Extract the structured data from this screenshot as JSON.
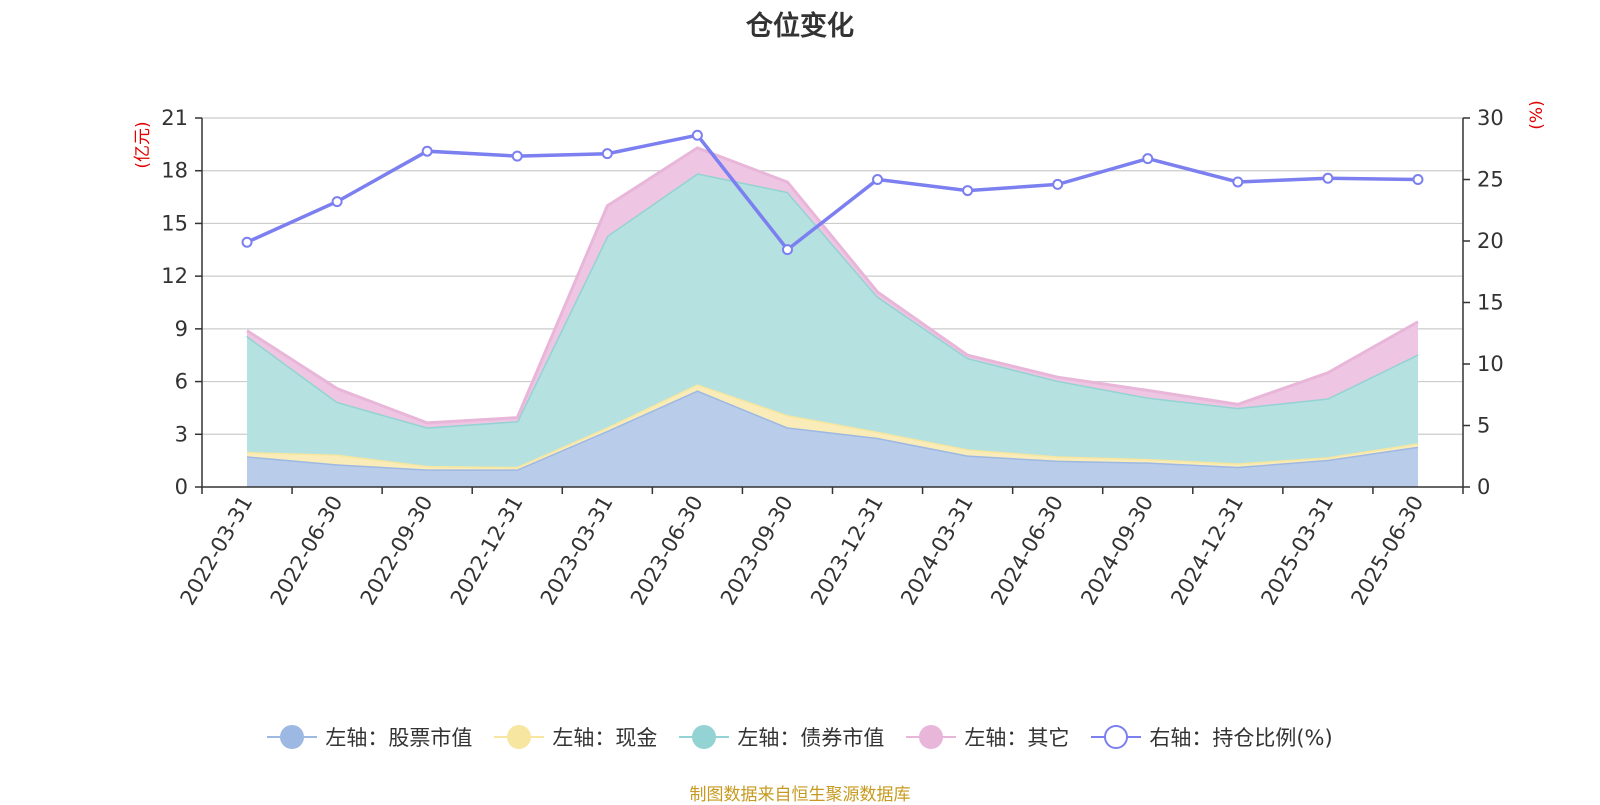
{
  "chart_data": {
    "type": "area",
    "title": "仓位变化",
    "categories": [
      "2022-03-31",
      "2022-06-30",
      "2022-09-30",
      "2022-12-31",
      "2023-03-31",
      "2023-06-30",
      "2023-09-30",
      "2023-12-31",
      "2024-03-31",
      "2024-06-30",
      "2024-09-30",
      "2024-12-31",
      "2025-03-31",
      "2025-06-30"
    ],
    "stacked": true,
    "y_left": {
      "unit": "(亿元)",
      "min": 0,
      "max": 21,
      "ticks": [
        0,
        3,
        6,
        9,
        12,
        15,
        18,
        21
      ]
    },
    "y_right": {
      "unit": "(%)",
      "min": 0,
      "max": 30,
      "ticks": [
        0,
        5,
        10,
        15,
        20,
        25,
        30
      ]
    },
    "series": [
      {
        "name": "左轴：股票市值",
        "axis": "left",
        "type": "area",
        "values": [
          1.75,
          1.3,
          1.0,
          1.0,
          3.2,
          5.5,
          3.4,
          2.8,
          1.8,
          1.5,
          1.4,
          1.15,
          1.55,
          2.3
        ],
        "color": "#9db8e2",
        "fill": "#b9cdea"
      },
      {
        "name": "左轴：现金",
        "axis": "left",
        "type": "area",
        "values": [
          0.25,
          0.55,
          0.2,
          0.15,
          0.2,
          0.35,
          0.7,
          0.35,
          0.35,
          0.25,
          0.2,
          0.2,
          0.15,
          0.2
        ],
        "color": "#f6e6a0",
        "fill": "#f9ecb8"
      },
      {
        "name": "左轴：债券市值",
        "axis": "left",
        "type": "area",
        "values": [
          6.6,
          3.0,
          2.2,
          2.6,
          10.9,
          12.0,
          12.7,
          7.7,
          5.2,
          4.3,
          3.5,
          3.15,
          3.35,
          5.05
        ],
        "color": "#93d3d3",
        "fill": "#b5e1e1"
      },
      {
        "name": "左轴：其它",
        "axis": "left",
        "type": "area",
        "values": [
          0.3,
          0.75,
          0.25,
          0.2,
          1.7,
          1.45,
          0.55,
          0.25,
          0.15,
          0.2,
          0.4,
          0.2,
          1.45,
          1.85
        ],
        "color": "#e8b6d9",
        "fill": "#eec6e3"
      },
      {
        "name": "右轴：持仓比例(%)",
        "axis": "right",
        "type": "line",
        "values": [
          19.9,
          23.2,
          27.3,
          26.9,
          27.1,
          28.6,
          19.3,
          25.0,
          24.1,
          24.6,
          26.7,
          24.8,
          25.1,
          25.0
        ],
        "color": "#7b7ff0"
      }
    ],
    "grid": true,
    "legend_position": "bottom"
  },
  "footer": "制图数据来自恒生聚源数据库"
}
